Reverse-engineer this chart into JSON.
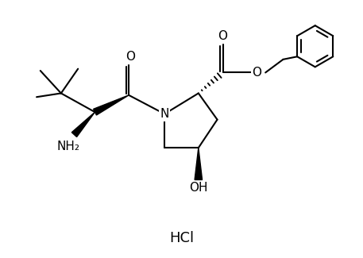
{
  "background_color": "#ffffff",
  "line_color": "#000000",
  "line_width": 1.5,
  "font_size": 11,
  "hcl_font_size": 13,
  "figsize": [
    4.57,
    3.25
  ],
  "dpi": 100,
  "xlim": [
    0,
    9.5
  ],
  "ylim": [
    0,
    6.8
  ]
}
